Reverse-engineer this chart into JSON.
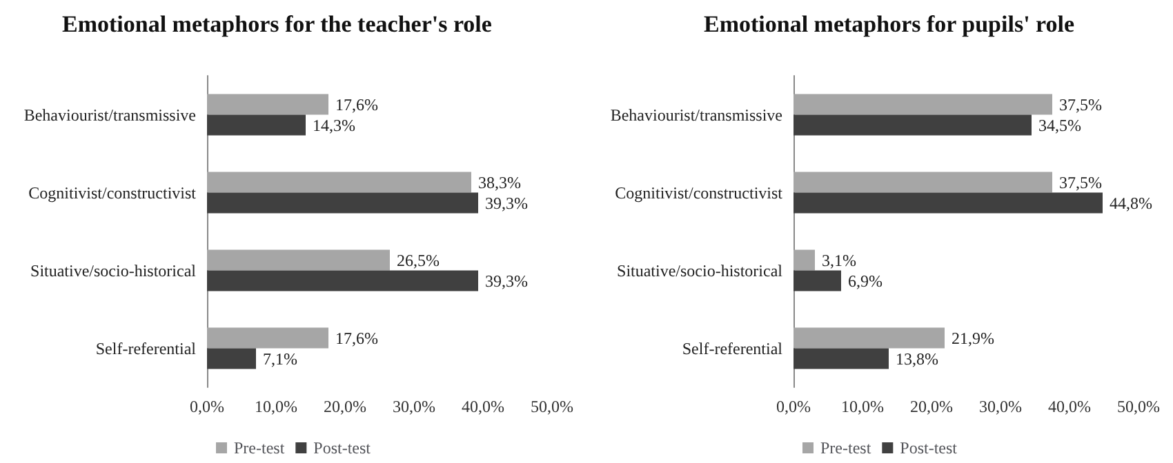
{
  "chart_data": [
    {
      "type": "bar",
      "orientation": "horizontal",
      "title": "Emotional metaphors for the teacher's role",
      "categories": [
        "Behaviourist/transmissive",
        "Cognitivist/constructivist",
        "Situative/socio-historical",
        "Self-referential"
      ],
      "series": [
        {
          "name": "Pre-test",
          "color": "#a6a6a6",
          "values": [
            17.6,
            38.3,
            26.5,
            17.6
          ],
          "value_labels": [
            "17,6%",
            "38,3%",
            "26,5%",
            "17,6%"
          ]
        },
        {
          "name": "Post-test",
          "color": "#404040",
          "values": [
            14.3,
            39.3,
            39.3,
            7.1
          ],
          "value_labels": [
            "14,3%",
            "39,3%",
            "39,3%",
            "7,1%"
          ]
        }
      ],
      "xlim": [
        0,
        50
      ],
      "xticks": [
        {
          "value": 0,
          "label": "0,0%"
        },
        {
          "value": 10,
          "label": "10,0%"
        },
        {
          "value": 20,
          "label": "20,0%"
        },
        {
          "value": 30,
          "label": "30,0%"
        },
        {
          "value": 40,
          "label": "40,0%"
        },
        {
          "value": 50,
          "label": "50,0%"
        }
      ],
      "grid": false,
      "legend": "bottom"
    },
    {
      "type": "bar",
      "orientation": "horizontal",
      "title": "Emotional metaphors for pupils' role",
      "categories": [
        "Behaviourist/transmissive",
        "Cognitivist/constructivist",
        "Situative/socio-historical",
        "Self-referential"
      ],
      "series": [
        {
          "name": "Pre-test",
          "color": "#a6a6a6",
          "values": [
            37.5,
            37.5,
            3.1,
            21.9
          ],
          "value_labels": [
            "37,5%",
            "37,5%",
            "3,1%",
            "21,9%"
          ]
        },
        {
          "name": "Post-test",
          "color": "#404040",
          "values": [
            34.5,
            44.8,
            6.9,
            13.8
          ],
          "value_labels": [
            "34,5%",
            "44,8%",
            "6,9%",
            "13,8%"
          ]
        }
      ],
      "xlim": [
        0,
        50
      ],
      "xticks": [
        {
          "value": 0,
          "label": "0,0%"
        },
        {
          "value": 10,
          "label": "10,0%"
        },
        {
          "value": 20,
          "label": "20,0%"
        },
        {
          "value": 30,
          "label": "30,0%"
        },
        {
          "value": 40,
          "label": "40,0%"
        },
        {
          "value": 50,
          "label": "50,0%"
        }
      ],
      "grid": false,
      "legend": "bottom"
    }
  ]
}
